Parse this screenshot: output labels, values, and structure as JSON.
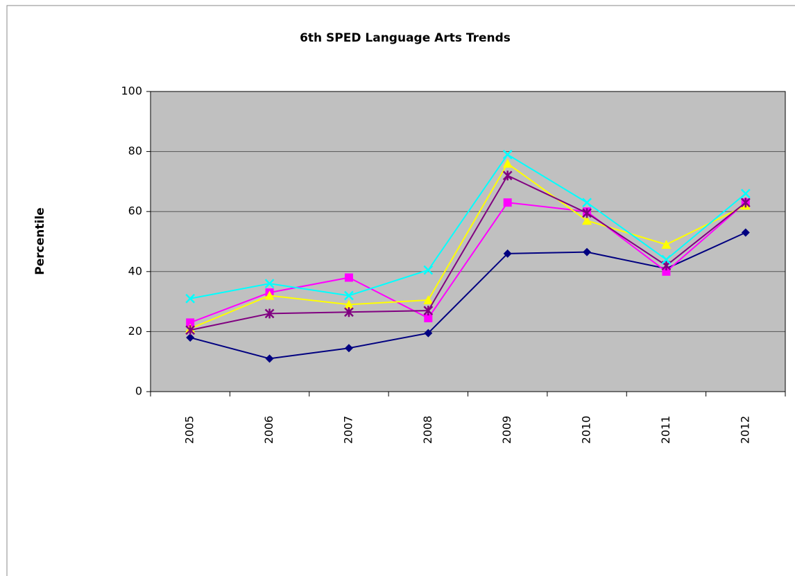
{
  "chart_data": {
    "type": "line",
    "title": "6th SPED Language Arts Trends",
    "y_label": "Percentile",
    "categories": [
      "2005",
      "2006",
      "2007",
      "2008",
      "2009",
      "2010",
      "2011",
      "2012"
    ],
    "series": [
      {
        "color": "#000080",
        "marker": "diamond",
        "values": [
          18,
          11,
          14.5,
          19.5,
          46,
          46.5,
          41,
          53
        ]
      },
      {
        "color": "#ff00ff",
        "marker": "square",
        "values": [
          23,
          33,
          38,
          24.5,
          63,
          60,
          40,
          63
        ]
      },
      {
        "color": "#ffff00",
        "marker": "triangle",
        "values": [
          21,
          32,
          29,
          30.5,
          76,
          57,
          49,
          62
        ]
      },
      {
        "color": "#800080",
        "marker": "asterisk",
        "values": [
          20.5,
          26,
          26.5,
          27,
          72,
          59.5,
          42,
          63
        ]
      },
      {
        "color": "#00ffff",
        "marker": "x",
        "values": [
          31,
          36,
          32,
          40.5,
          79,
          63,
          44,
          66
        ]
      }
    ],
    "ylim": [
      0,
      100
    ],
    "yticks": [
      0,
      20,
      40,
      60,
      80,
      100
    ],
    "grid": true,
    "plot_background": "#c0c0c0"
  }
}
